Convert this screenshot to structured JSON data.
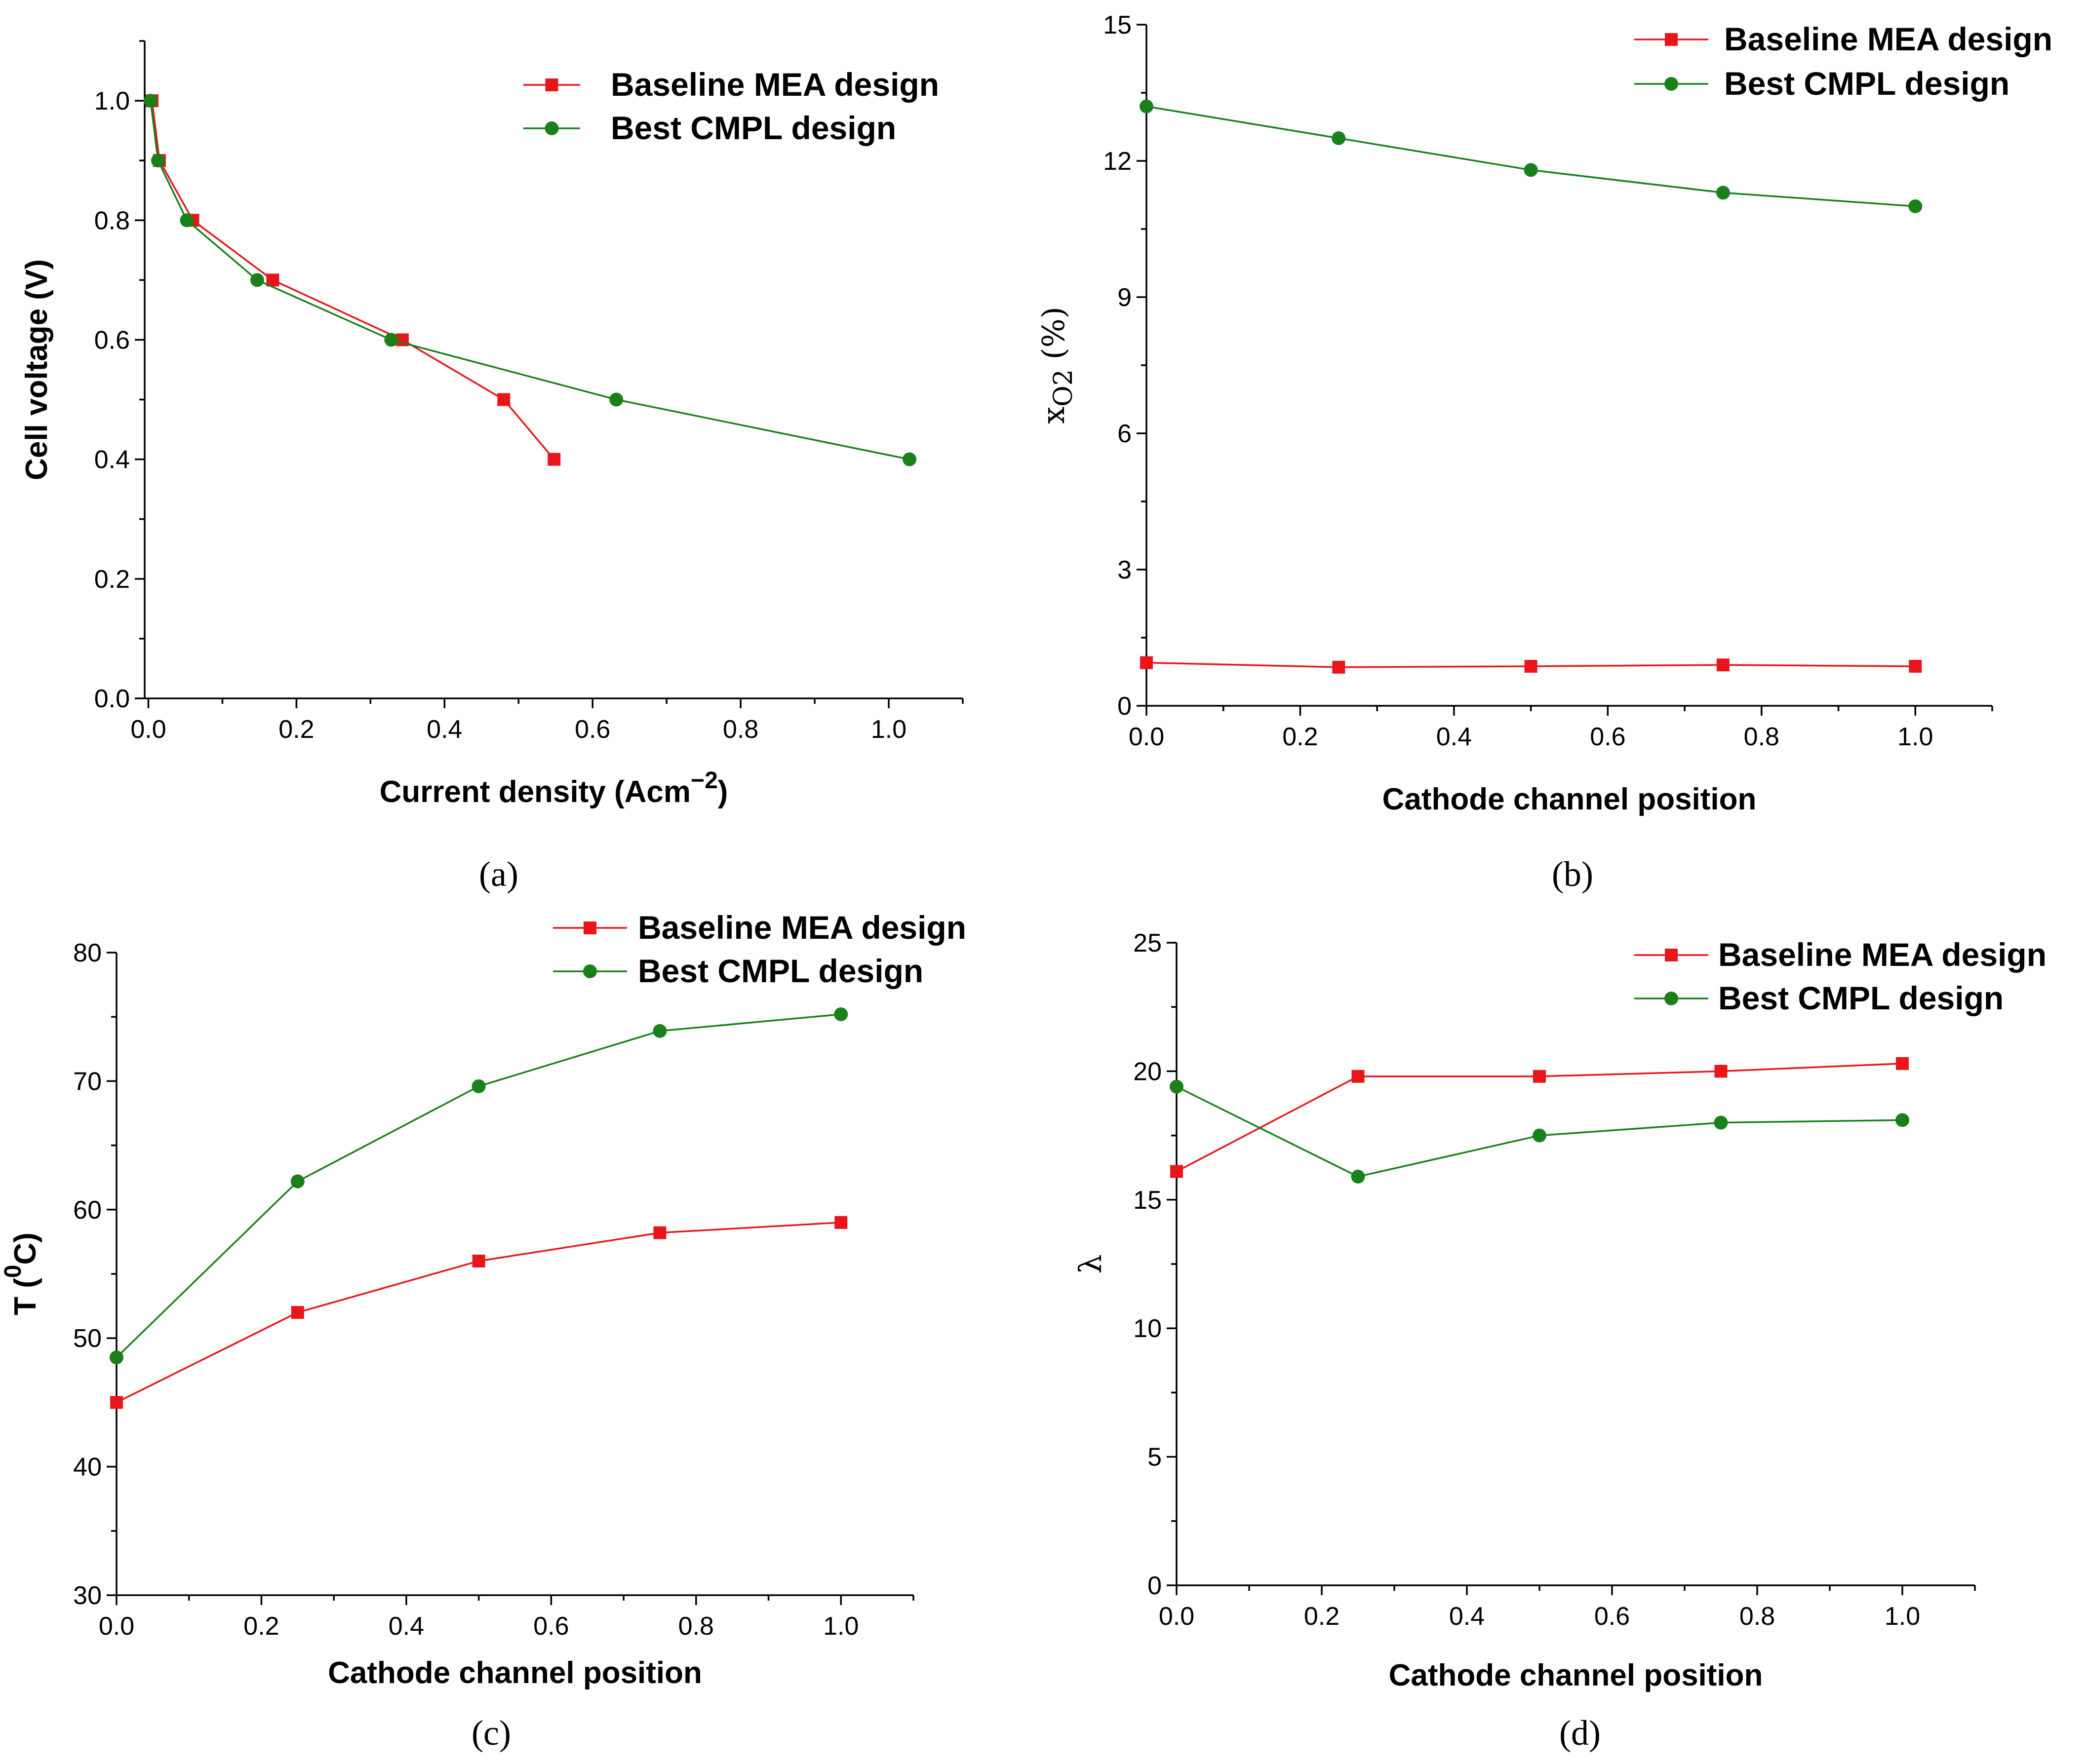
{
  "colors": {
    "baseline": "#e8151b",
    "best": "#19801a",
    "axis": "#000000"
  },
  "chart_data": [
    {
      "panel": "a",
      "caption": "(a)",
      "type": "line",
      "xlabel": "Current density (Acm",
      "xlabel_sup": "−2",
      "xlabel_end": ")",
      "ylabel": "Cell voltage (V)",
      "xlim": [
        -0.005,
        1.1
      ],
      "ylim": [
        0,
        1.1
      ],
      "xticks": [
        0.0,
        0.2,
        0.4,
        0.6,
        0.8,
        1.0
      ],
      "xtick_labels": [
        "0.0",
        "0.2",
        "0.4",
        "0.6",
        "0.8",
        "1.0"
      ],
      "yticks": [
        0.0,
        0.2,
        0.4,
        0.6,
        0.8,
        1.0
      ],
      "ytick_labels": [
        "0.0",
        "0.2",
        "0.4",
        "0.6",
        "0.8",
        "1.0"
      ],
      "legend": [
        "Baseline MEA design",
        "Best CMPL design"
      ],
      "series": [
        {
          "name": "Baseline MEA design",
          "marker": "square",
          "x": [
            0.005,
            0.015,
            0.06,
            0.168,
            0.343,
            0.48,
            0.548
          ],
          "y": [
            1.0,
            0.9,
            0.8,
            0.7,
            0.6,
            0.5,
            0.4
          ]
        },
        {
          "name": "Best CMPL design",
          "marker": "circle",
          "x": [
            0.003,
            0.013,
            0.052,
            0.147,
            0.328,
            0.632,
            1.028
          ],
          "y": [
            1.0,
            0.9,
            0.8,
            0.7,
            0.6,
            0.5,
            0.4
          ]
        }
      ]
    },
    {
      "panel": "b",
      "caption": "(b)",
      "type": "line",
      "xlabel": "Cathode channel position",
      "ylabel": "x",
      "ylabel_sub": "O2",
      "ylabel_end": " (%)",
      "xlim": [
        0,
        1.1
      ],
      "ylim": [
        0,
        15
      ],
      "xticks": [
        0.0,
        0.2,
        0.4,
        0.6,
        0.8,
        1.0
      ],
      "xtick_labels": [
        "0.0",
        "0.2",
        "0.4",
        "0.6",
        "0.8",
        "1.0"
      ],
      "yticks": [
        0,
        3,
        6,
        9,
        12,
        15
      ],
      "ytick_labels": [
        "0",
        "3",
        "6",
        "9",
        "12",
        "15"
      ],
      "legend": [
        "Baseline MEA design",
        "Best CMPL design"
      ],
      "series": [
        {
          "name": "Baseline MEA design",
          "marker": "square",
          "x": [
            0,
            0.25,
            0.5,
            0.75,
            1.0
          ],
          "y": [
            0.95,
            0.85,
            0.87,
            0.9,
            0.87
          ]
        },
        {
          "name": "Best CMPL design",
          "marker": "circle",
          "x": [
            0,
            0.25,
            0.5,
            0.75,
            1.0
          ],
          "y": [
            13.2,
            12.5,
            11.8,
            11.3,
            11.0
          ]
        }
      ]
    },
    {
      "panel": "c",
      "caption": "(c)",
      "type": "line",
      "xlabel": "Cathode channel position",
      "ylabel": "T (",
      "ylabel_sup": "0",
      "ylabel_end": "C)",
      "xlim": [
        0,
        1.1
      ],
      "ylim": [
        30,
        80
      ],
      "xticks": [
        0.0,
        0.2,
        0.4,
        0.6,
        0.8,
        1.0
      ],
      "xtick_labels": [
        "0.0",
        "0.2",
        "0.4",
        "0.6",
        "0.8",
        "1.0"
      ],
      "yticks": [
        30,
        40,
        50,
        60,
        70,
        80
      ],
      "ytick_labels": [
        "30",
        "40",
        "50",
        "60",
        "70",
        "80"
      ],
      "legend": [
        "Baseline MEA design",
        "Best CMPL design"
      ],
      "series": [
        {
          "name": "Baseline MEA design",
          "marker": "square",
          "x": [
            0,
            0.25,
            0.5,
            0.75,
            1.0
          ],
          "y": [
            45.0,
            52.0,
            56.0,
            58.2,
            59.0
          ]
        },
        {
          "name": "Best CMPL design",
          "marker": "circle",
          "x": [
            0,
            0.25,
            0.5,
            0.75,
            1.0
          ],
          "y": [
            48.5,
            62.2,
            69.6,
            73.9,
            75.2
          ]
        }
      ]
    },
    {
      "panel": "d",
      "caption": "(d)",
      "type": "line",
      "xlabel": "Cathode channel position",
      "ylabel": "λ",
      "xlim": [
        0,
        1.1
      ],
      "ylim": [
        0,
        25
      ],
      "xticks": [
        0.0,
        0.2,
        0.4,
        0.6,
        0.8,
        1.0
      ],
      "xtick_labels": [
        "0.0",
        "0.2",
        "0.4",
        "0.6",
        "0.8",
        "1.0"
      ],
      "yticks": [
        0,
        5,
        10,
        15,
        20,
        25
      ],
      "ytick_labels": [
        "0",
        "5",
        "10",
        "15",
        "20",
        "25"
      ],
      "legend": [
        "Baseline MEA design",
        "Best CMPL design"
      ],
      "series": [
        {
          "name": "Baseline MEA design",
          "marker": "square",
          "x": [
            0,
            0.25,
            0.5,
            0.75,
            1.0
          ],
          "y": [
            16.1,
            19.8,
            19.8,
            20.0,
            20.3
          ]
        },
        {
          "name": "Best CMPL design",
          "marker": "circle",
          "x": [
            0,
            0.25,
            0.5,
            0.75,
            1.0
          ],
          "y": [
            19.4,
            15.9,
            17.5,
            18.0,
            18.1
          ]
        }
      ]
    }
  ]
}
